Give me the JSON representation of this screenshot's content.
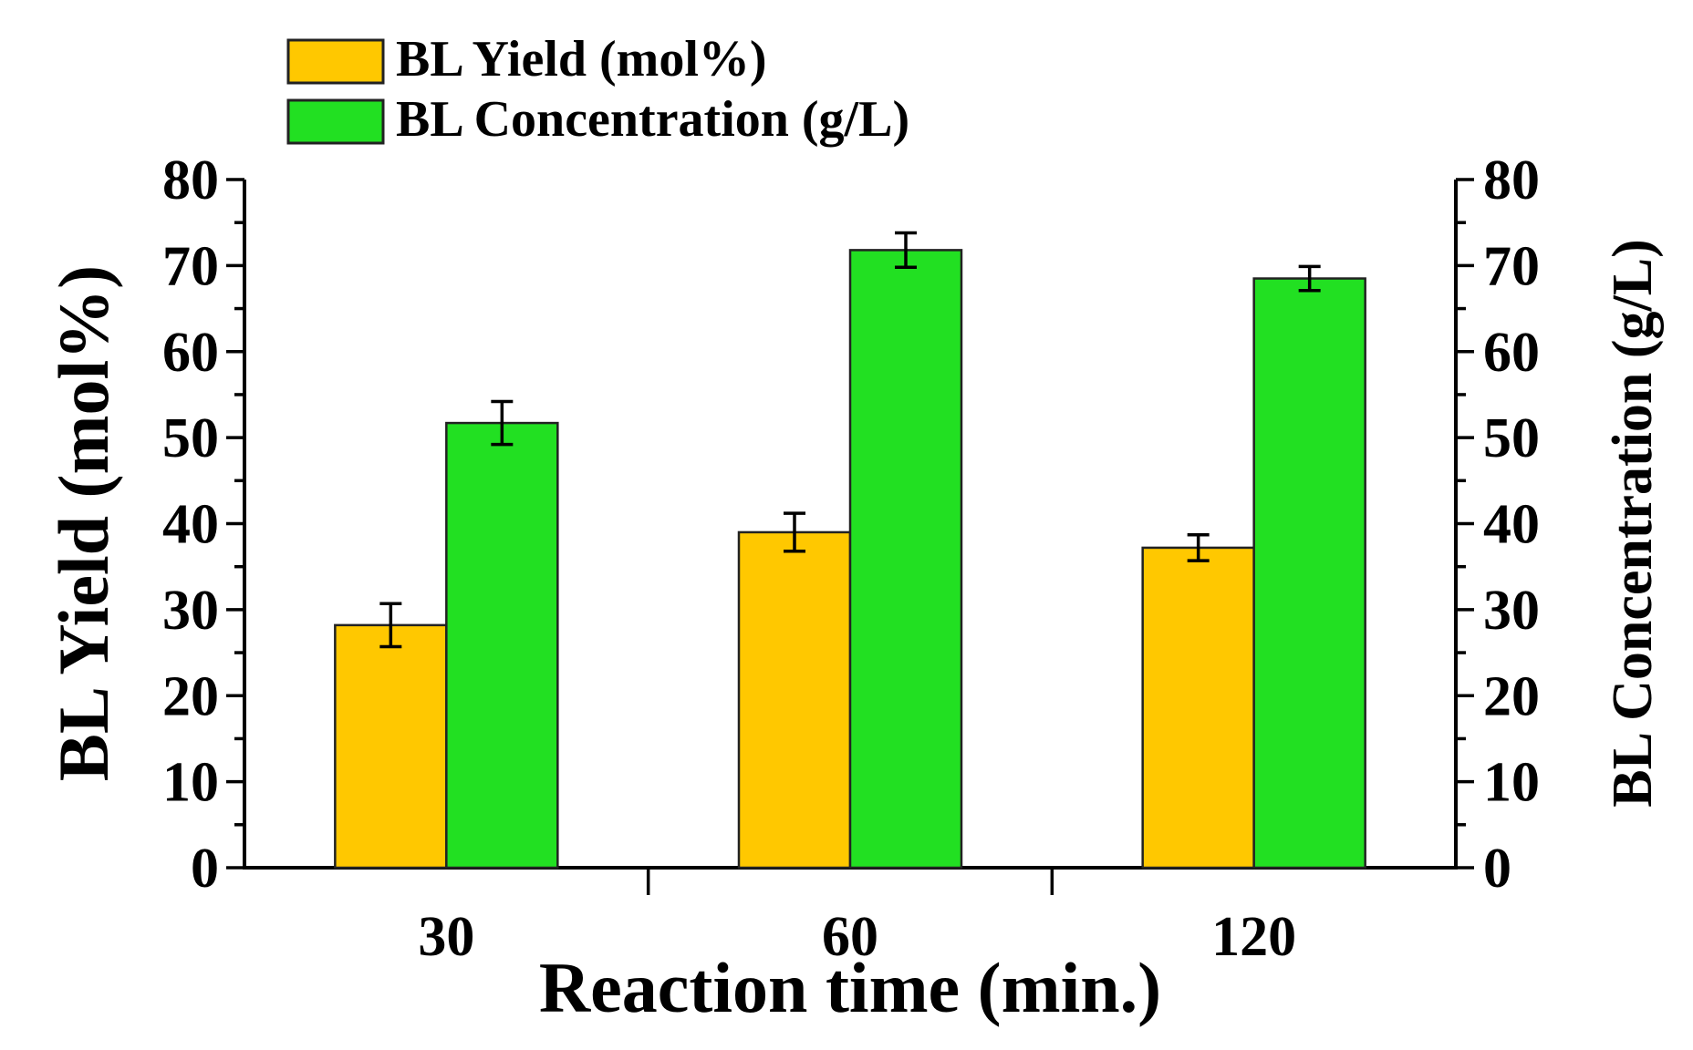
{
  "chart_data": {
    "type": "bar",
    "title": "",
    "xlabel": "Reaction time (min.)",
    "ylabel": "BL Yield (mol%)",
    "y2label": "BL Concentration (g/L)",
    "categories": [
      "30",
      "60",
      "120"
    ],
    "ylim": [
      0,
      80
    ],
    "y2lim": [
      0,
      80
    ],
    "yticks": [
      "0",
      "10",
      "20",
      "30",
      "40",
      "50",
      "60",
      "70",
      "80"
    ],
    "y2ticks": [
      "0",
      "10",
      "20",
      "30",
      "40",
      "50",
      "60",
      "70",
      "80"
    ],
    "legend_position": "top-left",
    "grid": false,
    "series": [
      {
        "name": "BL Yield (mol%)",
        "axis": "left",
        "color": "#FFC800",
        "values": [
          28.2,
          39.0,
          37.2
        ],
        "errors": [
          2.5,
          2.2,
          1.5
        ]
      },
      {
        "name": "BL Concentration (g/L)",
        "axis": "right",
        "color": "#22E022",
        "values": [
          51.7,
          71.8,
          68.5
        ],
        "errors": [
          2.5,
          2.0,
          1.4
        ]
      }
    ]
  }
}
